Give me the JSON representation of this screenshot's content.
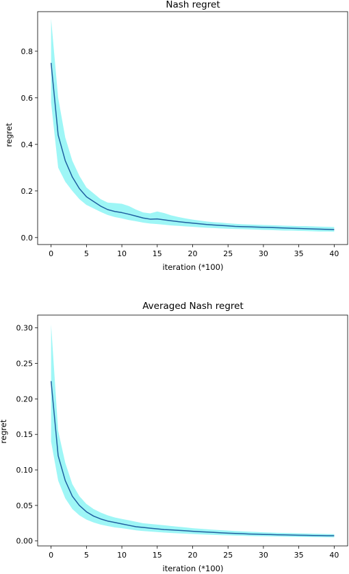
{
  "chart_data": [
    {
      "type": "line",
      "title": "Nash regret",
      "xlabel": "iteration (*100)",
      "ylabel": "regret",
      "xlim": [
        -1.9,
        41.9
      ],
      "ylim": [
        -0.03,
        0.97
      ],
      "xticks": [
        0,
        5,
        10,
        15,
        20,
        25,
        30,
        35,
        40
      ],
      "xtick_labels": [
        "0",
        "5",
        "10",
        "15",
        "20",
        "25",
        "30",
        "35",
        "40"
      ],
      "yticks": [
        0.0,
        0.2,
        0.4,
        0.6,
        0.8
      ],
      "ytick_labels": [
        "0.0",
        "0.2",
        "0.4",
        "0.6",
        "0.8"
      ],
      "grid": false,
      "line_color": "#1f5fa0",
      "band_color": "#9ef6f6",
      "series": [
        {
          "x": [
            0,
            1,
            2,
            3,
            4,
            5,
            6,
            7,
            8,
            9,
            10,
            11,
            12,
            13,
            14,
            15,
            16,
            17,
            18,
            19,
            20,
            21,
            22,
            23,
            24,
            25,
            26,
            27,
            28,
            29,
            30,
            31,
            32,
            33,
            34,
            35,
            36,
            37,
            38,
            39,
            40
          ],
          "y": [
            0.75,
            0.44,
            0.33,
            0.26,
            0.21,
            0.175,
            0.155,
            0.135,
            0.12,
            0.112,
            0.107,
            0.1,
            0.092,
            0.084,
            0.079,
            0.08,
            0.076,
            0.072,
            0.068,
            0.065,
            0.062,
            0.059,
            0.056,
            0.054,
            0.052,
            0.05,
            0.048,
            0.047,
            0.046,
            0.045,
            0.044,
            0.043,
            0.042,
            0.041,
            0.04,
            0.039,
            0.038,
            0.037,
            0.036,
            0.035,
            0.034
          ],
          "y_upper": [
            0.94,
            0.6,
            0.43,
            0.33,
            0.265,
            0.215,
            0.19,
            0.165,
            0.15,
            0.148,
            0.145,
            0.135,
            0.12,
            0.108,
            0.104,
            0.112,
            0.105,
            0.095,
            0.088,
            0.082,
            0.077,
            0.073,
            0.069,
            0.066,
            0.064,
            0.061,
            0.059,
            0.057,
            0.056,
            0.055,
            0.054,
            0.053,
            0.052,
            0.051,
            0.05,
            0.049,
            0.049,
            0.048,
            0.047,
            0.046,
            0.045
          ],
          "y_lower": [
            0.58,
            0.3,
            0.24,
            0.2,
            0.165,
            0.14,
            0.125,
            0.11,
            0.097,
            0.088,
            0.082,
            0.075,
            0.07,
            0.064,
            0.06,
            0.058,
            0.055,
            0.052,
            0.05,
            0.048,
            0.046,
            0.044,
            0.042,
            0.041,
            0.039,
            0.038,
            0.037,
            0.036,
            0.035,
            0.034,
            0.033,
            0.032,
            0.031,
            0.03,
            0.03,
            0.029,
            0.028,
            0.027,
            0.026,
            0.026,
            0.025
          ]
        }
      ]
    },
    {
      "type": "line",
      "title": "Averaged Nash regret",
      "xlabel": "iteration (*100)",
      "ylabel": "regret",
      "xlim": [
        -1.9,
        41.9
      ],
      "ylim": [
        -0.007,
        0.318
      ],
      "xticks": [
        0,
        5,
        10,
        15,
        20,
        25,
        30,
        35,
        40
      ],
      "xtick_labels": [
        "0",
        "5",
        "10",
        "15",
        "20",
        "25",
        "30",
        "35",
        "40"
      ],
      "yticks": [
        0.0,
        0.05,
        0.1,
        0.15,
        0.2,
        0.25,
        0.3
      ],
      "ytick_labels": [
        "0.00",
        "0.05",
        "0.10",
        "0.15",
        "0.20",
        "0.25",
        "0.30"
      ],
      "grid": false,
      "line_color": "#1f5fa0",
      "band_color": "#9ef6f6",
      "series": [
        {
          "x": [
            0,
            1,
            2,
            3,
            4,
            5,
            6,
            7,
            8,
            9,
            10,
            11,
            12,
            13,
            14,
            15,
            16,
            17,
            18,
            19,
            20,
            21,
            22,
            23,
            24,
            25,
            26,
            27,
            28,
            29,
            30,
            31,
            32,
            33,
            34,
            35,
            36,
            37,
            38,
            39,
            40
          ],
          "y": [
            0.225,
            0.12,
            0.085,
            0.063,
            0.05,
            0.041,
            0.035,
            0.031,
            0.028,
            0.026,
            0.024,
            0.022,
            0.02,
            0.019,
            0.018,
            0.017,
            0.016,
            0.0155,
            0.015,
            0.0143,
            0.0136,
            0.013,
            0.0125,
            0.012,
            0.0115,
            0.011,
            0.0106,
            0.0102,
            0.0098,
            0.0095,
            0.0092,
            0.009,
            0.0087,
            0.0085,
            0.0083,
            0.0081,
            0.0079,
            0.0077,
            0.0076,
            0.0074,
            0.0073
          ],
          "y_upper": [
            0.305,
            0.155,
            0.11,
            0.08,
            0.063,
            0.052,
            0.045,
            0.04,
            0.036,
            0.033,
            0.031,
            0.029,
            0.027,
            0.025,
            0.024,
            0.023,
            0.022,
            0.021,
            0.02,
            0.019,
            0.018,
            0.0172,
            0.0165,
            0.0158,
            0.0152,
            0.0146,
            0.014,
            0.0135,
            0.013,
            0.0126,
            0.0122,
            0.0118,
            0.0115,
            0.0112,
            0.011,
            0.0107,
            0.0105,
            0.0102,
            0.01,
            0.0098,
            0.0096
          ],
          "y_lower": [
            0.14,
            0.085,
            0.06,
            0.045,
            0.036,
            0.03,
            0.026,
            0.023,
            0.021,
            0.019,
            0.018,
            0.0165,
            0.015,
            0.014,
            0.0132,
            0.0125,
            0.0118,
            0.0112,
            0.0107,
            0.0102,
            0.0097,
            0.0093,
            0.0089,
            0.0085,
            0.0082,
            0.0079,
            0.0076,
            0.0073,
            0.007,
            0.0068,
            0.0066,
            0.0064,
            0.0062,
            0.006,
            0.0058,
            0.0057,
            0.0055,
            0.0054,
            0.0053,
            0.0052,
            0.0051
          ]
        }
      ]
    }
  ]
}
